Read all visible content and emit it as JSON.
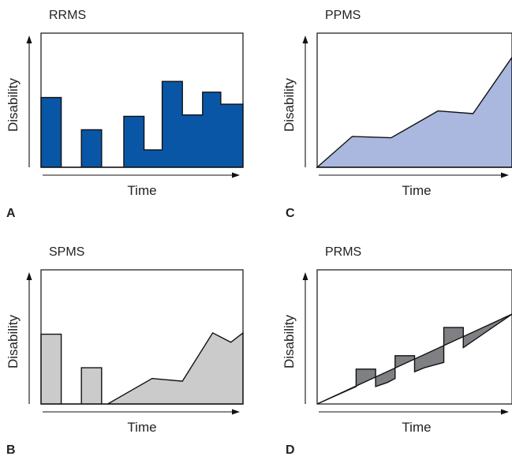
{
  "colors": {
    "rrms": "#0a56a6",
    "ppms": "#aab8df",
    "spms": "#cbcbcb",
    "prms": "#7f8083",
    "stroke": "#111111"
  },
  "chart_data": [
    {
      "type": "area",
      "panel_letter": "A",
      "title": "RRMS",
      "xlabel": "Time",
      "ylabel": "Disability",
      "xlim": [
        0,
        100
      ],
      "ylim": [
        0,
        100
      ],
      "fill_key": "rrms",
      "x": [
        0,
        0,
        10,
        10,
        20,
        20,
        30,
        30,
        41,
        41,
        51,
        51,
        60,
        60,
        70,
        70,
        80,
        80,
        89,
        89,
        100,
        100
      ],
      "y": [
        0,
        52,
        52,
        0,
        0,
        28,
        28,
        0,
        0,
        38,
        38,
        13,
        13,
        64,
        64,
        39,
        39,
        56,
        56,
        47,
        47,
        0
      ]
    },
    {
      "type": "area",
      "panel_letter": "B",
      "title": "SPMS",
      "xlabel": "Time",
      "ylabel": "Disability",
      "xlim": [
        0,
        100
      ],
      "ylim": [
        0,
        100
      ],
      "fill_key": "spms",
      "x": [
        0,
        0,
        10,
        10,
        20,
        20,
        30,
        30,
        33,
        55,
        70,
        85,
        85,
        94,
        100,
        100
      ],
      "y": [
        0,
        52,
        52,
        0,
        0,
        27,
        27,
        0,
        0,
        19,
        17,
        53,
        53,
        46,
        53,
        0
      ]
    },
    {
      "type": "area",
      "panel_letter": "C",
      "title": "PPMS",
      "xlabel": "Time",
      "ylabel": "Disability",
      "xlim": [
        0,
        100
      ],
      "ylim": [
        0,
        100
      ],
      "fill_key": "ppms",
      "x": [
        0,
        18,
        38,
        62,
        80,
        100,
        100
      ],
      "y": [
        0,
        23,
        22,
        42,
        40,
        82,
        0
      ]
    },
    {
      "type": "area",
      "panel_letter": "D",
      "title": "PRMS",
      "xlabel": "Time",
      "ylabel": "Disability",
      "xlim": [
        0,
        100
      ],
      "ylim": [
        0,
        100
      ],
      "fill_key": "prms",
      "x": [
        0,
        20,
        20,
        30,
        30,
        36,
        40,
        40,
        50,
        50,
        55,
        65,
        65,
        75,
        75,
        100
      ],
      "y": [
        0,
        13,
        26,
        26,
        13,
        16,
        19,
        36,
        36,
        24,
        27,
        31,
        57,
        57,
        42,
        67
      ]
    }
  ]
}
